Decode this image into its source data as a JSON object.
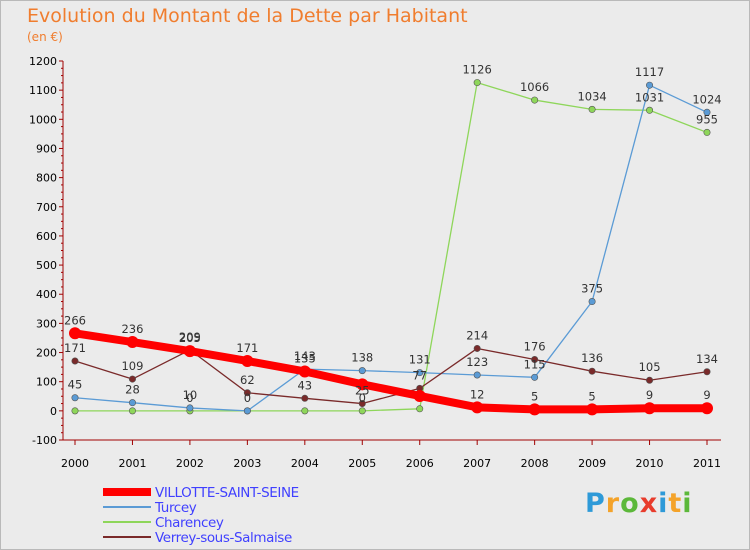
{
  "header": {
    "title": "Evolution du Montant de la Dette par Habitant",
    "unit": "(en €)"
  },
  "logo": {
    "text": "Proxiti",
    "letters": [
      {
        "ch": "P",
        "color": "#2e9ad8"
      },
      {
        "ch": "r",
        "color": "#f4a32a"
      },
      {
        "ch": "o",
        "color": "#5cb83a"
      },
      {
        "ch": "x",
        "color": "#e83c2c"
      },
      {
        "ch": "i",
        "color": "#2e9ad8"
      },
      {
        "ch": "t",
        "color": "#f4a32a"
      },
      {
        "ch": "i",
        "color": "#5cb83a"
      }
    ]
  },
  "chart_data": {
    "type": "line",
    "x": [
      "2000",
      "2001",
      "2002",
      "2003",
      "2004",
      "2005",
      "2006",
      "2007",
      "2008",
      "2009",
      "2010",
      "2011"
    ],
    "ylim": [
      -100,
      1200
    ],
    "yticks": [
      -100,
      0,
      100,
      200,
      300,
      400,
      500,
      600,
      700,
      800,
      900,
      1000,
      1100,
      1200
    ],
    "grid": false,
    "legend_position": "bottom-left",
    "series": [
      {
        "name": "VILLOTTE-SAINT-SEINE",
        "color": "#ff0000",
        "values": [
          266,
          236,
          205,
          171,
          135,
          91,
          51,
          12,
          5,
          5,
          9,
          9
        ],
        "labels": [
          "266",
          "236",
          "205",
          "171",
          "135",
          "",
          "",
          "12",
          "5",
          "5",
          "9",
          "9"
        ]
      },
      {
        "name": "Turcey",
        "color": "#5b9bd5",
        "values": [
          45,
          28,
          10,
          0,
          143,
          138,
          131,
          123,
          115,
          375,
          1117,
          1024
        ],
        "labels": [
          "45",
          "28",
          "10",
          "0",
          "143",
          "138",
          "131",
          "123",
          "115",
          "375",
          "1117",
          "1024"
        ]
      },
      {
        "name": "Charencey",
        "color": "#8ed65a",
        "values": [
          0,
          0,
          0,
          0,
          0,
          0,
          7,
          1126,
          1066,
          1034,
          1031,
          955
        ],
        "labels": [
          "",
          "",
          "0",
          "",
          "",
          "0",
          "",
          "1126",
          "1066",
          "1034",
          "1031",
          "955"
        ]
      },
      {
        "name": "Verrey-sous-Salmaise",
        "color": "#7a2a2a",
        "values": [
          171,
          109,
          209,
          62,
          43,
          25,
          77,
          214,
          176,
          136,
          105,
          134
        ],
        "labels": [
          "171",
          "109",
          "209",
          "62",
          "43",
          "25",
          "77",
          "214",
          "176",
          "136",
          "105",
          "134"
        ]
      }
    ]
  }
}
